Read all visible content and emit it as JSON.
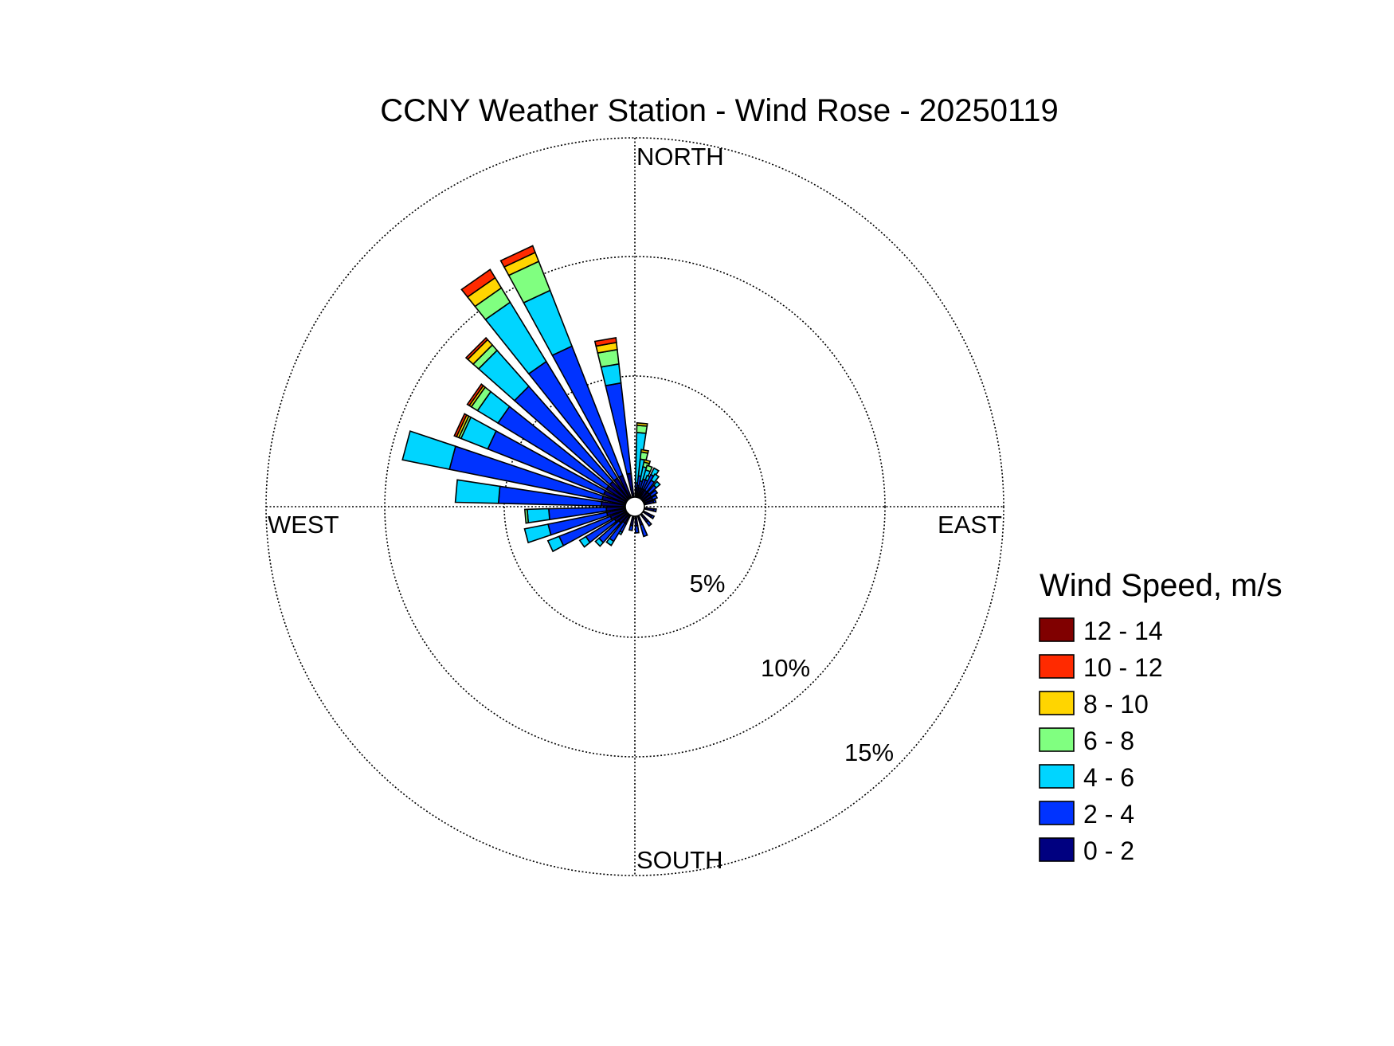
{
  "chart_data": {
    "type": "wind-rose",
    "title": "CCNY Weather Station - Wind Rose - 20250119",
    "direction_labels": {
      "north": "NORTH",
      "east": "EAST",
      "south": "SOUTH",
      "west": "WEST"
    },
    "radial_ticks": [
      {
        "value": 5,
        "label": "5%"
      },
      {
        "value": 10,
        "label": "10%"
      },
      {
        "value": 15,
        "label": "15%"
      }
    ],
    "radial_max": 15,
    "legend": {
      "title": "Wind Speed, m/s",
      "bins": [
        {
          "label": "12 - 14",
          "color": "#800000"
        },
        {
          "label": "10 - 12",
          "color": "#ff2a00"
        },
        {
          "label": "8 - 10",
          "color": "#ffd500"
        },
        {
          "label": "6 - 8",
          "color": "#80ff80"
        },
        {
          "label": "4 - 6",
          "color": "#00d5ff"
        },
        {
          "label": "2 - 4",
          "color": "#0033ff"
        },
        {
          "label": "0 - 2",
          "color": "#000080"
        }
      ]
    },
    "speed_bins_low_to_high": [
      "0 - 2",
      "2 - 4",
      "4 - 6",
      "6 - 8",
      "8 - 10",
      "10 - 12",
      "12 - 14"
    ],
    "series": [
      {
        "direction": 5,
        "cumulative": [
          0.4,
          0.6,
          2.7,
          3.0,
          3.1
        ]
      },
      {
        "direction": 10,
        "cumulative": [
          0.5,
          0.9,
          1.6,
          1.9,
          2.0
        ]
      },
      {
        "direction": 15,
        "cumulative": [
          0.4,
          0.7,
          1.3,
          1.5,
          1.6
        ]
      },
      {
        "direction": 20,
        "cumulative": [
          0.4,
          0.8,
          1.2,
          1.4
        ]
      },
      {
        "direction": 25,
        "cumulative": [
          0.4,
          0.8,
          1.0
        ]
      },
      {
        "direction": 30,
        "cumulative": [
          0.4,
          1.1,
          1.4
        ]
      },
      {
        "direction": 35,
        "cumulative": [
          0.4,
          0.9,
          1.2
        ]
      },
      {
        "direction": 45,
        "cumulative": [
          0.4,
          0.8,
          1.0
        ]
      },
      {
        "direction": 55,
        "cumulative": [
          0.4,
          0.7
        ]
      },
      {
        "direction": 65,
        "cumulative": [
          0.4,
          0.6
        ]
      },
      {
        "direction": 75,
        "cumulative": [
          0.4,
          0.5
        ]
      },
      {
        "direction": 100,
        "cumulative": [
          0.4,
          0.5
        ]
      },
      {
        "direction": 120,
        "cumulative": [
          0.4,
          0.5
        ]
      },
      {
        "direction": 140,
        "cumulative": [
          0.4,
          0.6
        ]
      },
      {
        "direction": 160,
        "cumulative": [
          0.4,
          0.9
        ]
      },
      {
        "direction": 175,
        "cumulative": [
          0.4,
          0.7
        ]
      },
      {
        "direction": 190,
        "cumulative": [
          0.4,
          0.6
        ]
      },
      {
        "direction": 210,
        "cumulative": [
          0.4,
          0.8,
          0.9
        ]
      },
      {
        "direction": 215,
        "cumulative": [
          0.4,
          1.3,
          1.5
        ]
      },
      {
        "direction": 225,
        "cumulative": [
          0.5,
          1.6,
          1.8
        ]
      },
      {
        "direction": 235,
        "cumulative": [
          0.6,
          2.0,
          2.3
        ]
      },
      {
        "direction": 245,
        "cumulative": [
          0.7,
          3.0,
          3.5
        ]
      },
      {
        "direction": 255,
        "cumulative": [
          0.8,
          3.3,
          4.3
        ]
      },
      {
        "direction": 265,
        "cumulative": [
          0.8,
          3.2,
          4.1,
          4.2
        ]
      },
      {
        "direction": 275,
        "cumulative": [
          1.0,
          5.3,
          7.1
        ]
      },
      {
        "direction": 285,
        "cumulative": [
          1.0,
          7.5,
          9.5
        ]
      },
      {
        "direction": 295,
        "cumulative": [
          1.0,
          6.2,
          7.4,
          7.5,
          7.6,
          7.7
        ]
      },
      {
        "direction": 305,
        "cumulative": [
          1.0,
          6.3,
          7.3,
          7.6,
          7.7,
          7.8
        ]
      },
      {
        "direction": 315,
        "cumulative": [
          1.0,
          6.3,
          8.3,
          8.6,
          8.9,
          9.0
        ]
      },
      {
        "direction": 325,
        "cumulative": [
          1.0,
          6.7,
          9.6,
          10.3,
          10.8,
          11.2
        ]
      },
      {
        "direction": 335,
        "cumulative": [
          1.0,
          6.8,
          9.3,
          10.6,
          11.0,
          11.3
        ]
      },
      {
        "direction": 350,
        "cumulative": [
          1.0,
          4.8,
          5.6,
          6.2,
          6.5,
          6.7
        ]
      }
    ]
  }
}
